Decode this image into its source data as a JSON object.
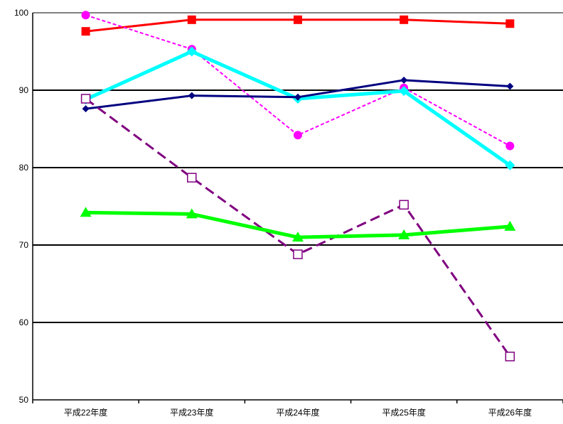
{
  "chart_data": {
    "type": "line",
    "title": "",
    "xlabel": "",
    "ylabel": "",
    "categories": [
      "平成22年度",
      "平成23年度",
      "平成24年度",
      "平成25年度",
      "平成26年度"
    ],
    "ylim": [
      50,
      100
    ],
    "yticks": [
      50,
      60,
      70,
      80,
      90,
      100
    ],
    "grid": true,
    "legend": "none",
    "series": [
      {
        "color": "#ff0000",
        "marker": "square",
        "line": "solid",
        "values": [
          97.6,
          99.1,
          99.1,
          99.1,
          98.6
        ]
      },
      {
        "color": "#ff00ff",
        "marker": "circle",
        "line": "dotted",
        "values": [
          99.7,
          95.3,
          84.2,
          90.3,
          82.8
        ]
      },
      {
        "color": "#00ffff",
        "marker": "diamond",
        "line": "thick",
        "values": [
          88.8,
          95.0,
          88.9,
          89.9,
          80.3
        ]
      },
      {
        "color": "#000080",
        "marker": "diamond",
        "line": "solid",
        "values": [
          87.6,
          89.3,
          89.1,
          91.3,
          90.5
        ]
      },
      {
        "color": "#800080",
        "marker": "open-square",
        "line": "dashed",
        "values": [
          88.9,
          78.7,
          68.8,
          75.2,
          55.6
        ]
      },
      {
        "color": "#00ff00",
        "marker": "triangle",
        "line": "thick",
        "values": [
          74.2,
          74.0,
          71.0,
          71.3,
          72.4
        ]
      }
    ]
  }
}
